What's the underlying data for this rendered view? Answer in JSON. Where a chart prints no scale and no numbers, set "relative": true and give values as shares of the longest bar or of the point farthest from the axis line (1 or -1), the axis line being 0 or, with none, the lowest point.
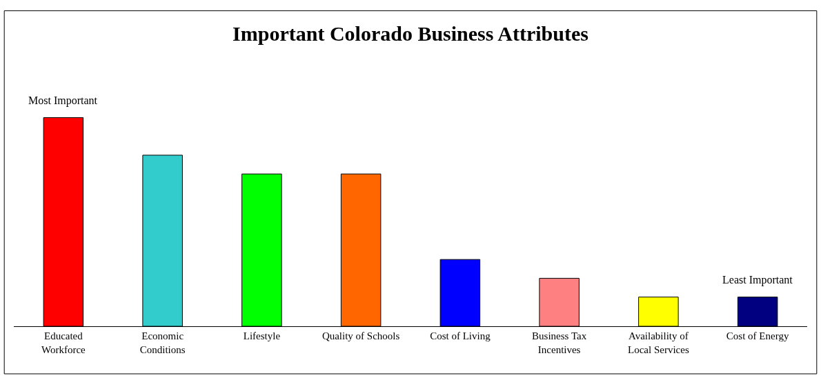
{
  "chart_data": {
    "type": "bar",
    "title": "Important Colorado Business Attributes",
    "relative": true,
    "categories": [
      "Educated\nWorkforce",
      "Economic\nConditions",
      "Lifestyle",
      "Quality of Schools",
      "Cost of Living",
      "Business Tax\nIncentives",
      "Availability of\nLocal Services",
      "Cost of Energy"
    ],
    "values": [
      1,
      0.82,
      0.73,
      0.73,
      0.32,
      0.23,
      0.14,
      0.14
    ],
    "colors": [
      "#ff0000",
      "#33cccc",
      "#00ff00",
      "#ff6600",
      "#0000ff",
      "#ff8080",
      "#ffff00",
      "#000080"
    ],
    "annotations": [
      "Most Important",
      "Least Important"
    ]
  }
}
